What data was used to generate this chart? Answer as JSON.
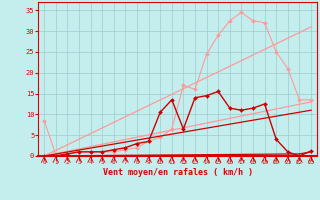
{
  "xlabel": "Vent moyen/en rafales ( km/h )",
  "xlim": [
    -0.5,
    23.5
  ],
  "ylim": [
    0,
    37
  ],
  "yticks": [
    0,
    5,
    10,
    15,
    20,
    25,
    30,
    35
  ],
  "xticks": [
    0,
    1,
    2,
    3,
    4,
    5,
    6,
    7,
    8,
    9,
    10,
    11,
    12,
    13,
    14,
    15,
    16,
    17,
    18,
    19,
    20,
    21,
    22,
    23
  ],
  "bg_color": "#c4eeee",
  "grid_color": "#99cccc",
  "axis_color": "#dd0000",
  "text_color": "#dd0000",
  "series": [
    {
      "x": [
        0,
        1,
        2,
        3,
        4,
        5,
        6,
        7,
        8,
        9,
        10,
        11,
        12,
        13,
        14,
        15,
        16,
        17,
        18,
        19,
        20,
        21,
        22,
        23
      ],
      "y": [
        8.5,
        0.3,
        0.5,
        1.0,
        1.0,
        1.0,
        1.0,
        1.5,
        2.0,
        3.5,
        4.5,
        6.5,
        17.0,
        16.0,
        24.5,
        29.0,
        32.5,
        34.5,
        32.5,
        32.0,
        25.0,
        21.0,
        13.5,
        13.5
      ],
      "color": "#ff9999",
      "linewidth": 0.8,
      "marker": "D",
      "markersize": 2.0
    },
    {
      "x": [
        0,
        23
      ],
      "y": [
        0,
        31.0
      ],
      "color": "#ff9999",
      "linewidth": 0.9,
      "marker": null,
      "markersize": 0
    },
    {
      "x": [
        0,
        23
      ],
      "y": [
        0,
        13.0
      ],
      "color": "#ff9999",
      "linewidth": 0.9,
      "marker": null,
      "markersize": 0
    },
    {
      "x": [
        0,
        1,
        2,
        3,
        4,
        5,
        6,
        7,
        8,
        9,
        10,
        11,
        12,
        13,
        14,
        15,
        16,
        17,
        18,
        19,
        20,
        21,
        22,
        23
      ],
      "y": [
        0,
        0,
        0.5,
        1.0,
        1.0,
        1.0,
        1.5,
        2.0,
        3.0,
        3.5,
        10.5,
        13.5,
        6.5,
        14.0,
        14.5,
        15.5,
        11.5,
        11.0,
        11.5,
        12.5,
        4.0,
        1.0,
        0,
        1.2
      ],
      "color": "#cc0000",
      "linewidth": 1.0,
      "marker": "D",
      "markersize": 2.0
    },
    {
      "x": [
        0,
        23
      ],
      "y": [
        0,
        11.0
      ],
      "color": "#cc0000",
      "linewidth": 0.9,
      "marker": null,
      "markersize": 0
    },
    {
      "x": [
        0,
        22,
        23
      ],
      "y": [
        0,
        0.5,
        1.0
      ],
      "color": "#cc0000",
      "linewidth": 0.9,
      "marker": null,
      "markersize": 0
    }
  ]
}
